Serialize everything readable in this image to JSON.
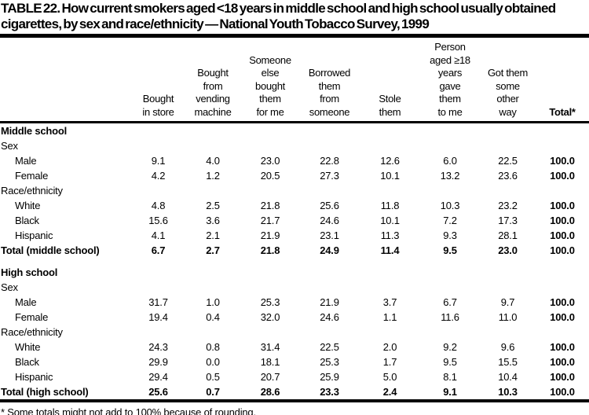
{
  "title": "TABLE 22. How current smokers aged <18 years in middle school and high school usually obtained cigarettes, by sex and race/ethnicity — National Youth Tobacco Survey, 1999",
  "footnote": "* Some totals might not add to 100% because of rounding.",
  "colors": {
    "text": "#000000",
    "background": "#ffffff",
    "rule": "#000000"
  },
  "table": {
    "columns": [
      "Bought\nin store",
      "Bought\nfrom\nvending\nmachine",
      "Someone\nelse\nbought\nthem\nfor me",
      "Borrowed\nthem\nfrom\nsomeone",
      "Stole\nthem",
      "Person\naged ≥18\nyears\ngave\nthem\nto me",
      "Got them\nsome\nother\nway",
      "Total*"
    ],
    "rows": [
      {
        "type": "section",
        "label": "Middle school"
      },
      {
        "type": "group",
        "label": "Sex"
      },
      {
        "type": "data",
        "label": "Male",
        "values": [
          "9.1",
          "4.0",
          "23.0",
          "22.8",
          "12.6",
          "6.0",
          "22.5",
          "100.0"
        ]
      },
      {
        "type": "data",
        "label": "Female",
        "values": [
          "4.2",
          "1.2",
          "20.5",
          "27.3",
          "10.1",
          "13.2",
          "23.6",
          "100.0"
        ]
      },
      {
        "type": "group",
        "label": "Race/ethnicity"
      },
      {
        "type": "data",
        "label": "White",
        "values": [
          "4.8",
          "2.5",
          "21.8",
          "25.6",
          "11.8",
          "10.3",
          "23.2",
          "100.0"
        ]
      },
      {
        "type": "data",
        "label": "Black",
        "values": [
          "15.6",
          "3.6",
          "21.7",
          "24.6",
          "10.1",
          "7.2",
          "17.3",
          "100.0"
        ]
      },
      {
        "type": "data",
        "label": "Hispanic",
        "values": [
          "4.1",
          "2.1",
          "21.9",
          "23.1",
          "11.3",
          "9.3",
          "28.1",
          "100.0"
        ]
      },
      {
        "type": "total",
        "label": "Total (middle school)",
        "values": [
          "6.7",
          "2.7",
          "21.8",
          "24.9",
          "11.4",
          "9.5",
          "23.0",
          "100.0"
        ]
      },
      {
        "type": "spacer"
      },
      {
        "type": "section",
        "label": "High school"
      },
      {
        "type": "group",
        "label": "Sex"
      },
      {
        "type": "data",
        "label": "Male",
        "values": [
          "31.7",
          "1.0",
          "25.3",
          "21.9",
          "3.7",
          "6.7",
          "9.7",
          "100.0"
        ]
      },
      {
        "type": "data",
        "label": "Female",
        "values": [
          "19.4",
          "0.4",
          "32.0",
          "24.6",
          "1.1",
          "11.6",
          "11.0",
          "100.0"
        ]
      },
      {
        "type": "group",
        "label": "Race/ethnicity"
      },
      {
        "type": "data",
        "label": "White",
        "values": [
          "24.3",
          "0.8",
          "31.4",
          "22.5",
          "2.0",
          "9.2",
          "9.6",
          "100.0"
        ]
      },
      {
        "type": "data",
        "label": "Black",
        "values": [
          "29.9",
          "0.0",
          "18.1",
          "25.3",
          "1.7",
          "9.5",
          "15.5",
          "100.0"
        ]
      },
      {
        "type": "data",
        "label": "Hispanic",
        "values": [
          "29.4",
          "0.5",
          "20.7",
          "25.9",
          "5.0",
          "8.1",
          "10.4",
          "100.0"
        ]
      },
      {
        "type": "total",
        "label": "Total (high school)",
        "values": [
          "25.6",
          "0.7",
          "28.6",
          "23.3",
          "2.4",
          "9.1",
          "10.3",
          "100.0"
        ]
      }
    ]
  }
}
